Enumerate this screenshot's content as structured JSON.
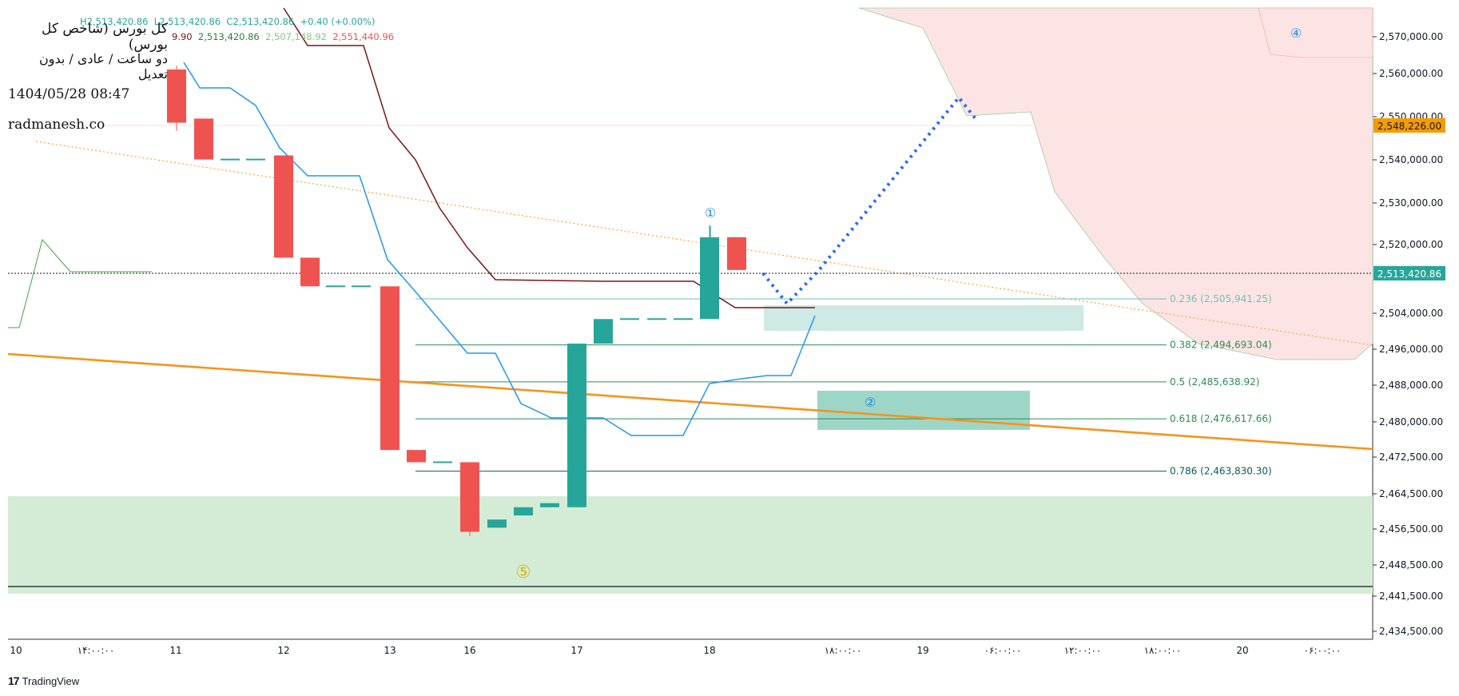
{
  "header": {
    "title": "کل بورس (شاخص کل بورس)",
    "subtitle": "دو ساعت / عادی / بدون تعدیل",
    "datetime": "1404/05/28 08:47",
    "site": "radmanesh.co"
  },
  "ohlc_line": {
    "h": "H2,513,420.86",
    "l": "L2,513,420.86",
    "c": "C2,513,420.86",
    "change": "+0.40 (+0.00%)"
  },
  "indicator_line": {
    "v1": "9.90",
    "v2": "2,513,420.86",
    "v3": "2,507,148.92",
    "v4": "2,551,440.96"
  },
  "brand": "TradingView",
  "colors": {
    "up": "#26a69a",
    "down": "#ef5350",
    "conversion": "#2196f3",
    "base": "#7b1414",
    "lagging": "#43a047",
    "trendline": "#f7931a",
    "projection": "#2962ff",
    "cloud_bearish": "#fde4e4",
    "support_zone": "#d4ecd6"
  },
  "chart_data": {
    "type": "candlestick",
    "y_axis": {
      "ticks": [
        "2,570,000.00",
        "2,560,000.00",
        "2,550,000.00",
        "2,540,000.00",
        "2,530,000.00",
        "2,520,000.00",
        "2,504,000.00",
        "2,496,000.00",
        "2,488,000.00",
        "2,480,000.00",
        "2,472,500.00",
        "2,464,500.00",
        "2,456,500.00",
        "2,448,500.00",
        "2,441,500.00",
        "2,434,500.00"
      ],
      "current_price_label": "2,513,420.86",
      "marker_label": "2,548,226.00"
    },
    "x_axis": {
      "ticks": [
        "10",
        "۱۴:۰۰:۰۰",
        "11",
        "12",
        "13",
        "16",
        "17",
        "18",
        "۱۸:۰۰:۰۰",
        "19",
        "۰۶:۰۰:۰۰",
        "۱۲:۰۰:۰۰",
        "۱۸:۰۰:۰۰",
        "20",
        "۰۶:۰۰:۰۰"
      ]
    },
    "candles": [
      {
        "o": 2562,
        "h": 2563,
        "l": 2547,
        "c": 2549
      },
      {
        "o": 2550,
        "h": 2550,
        "l": 2540,
        "c": 2540
      },
      {
        "o": 2540,
        "h": 2540,
        "l": 2540,
        "c": 2540
      },
      {
        "o": 2540,
        "h": 2540,
        "l": 2540,
        "c": 2540
      },
      {
        "o": 2541,
        "h": 2541,
        "l": 2516,
        "c": 2516
      },
      {
        "o": 2516,
        "h": 2516,
        "l": 2509,
        "c": 2509
      },
      {
        "o": 2509,
        "h": 2509,
        "l": 2509,
        "c": 2509
      },
      {
        "o": 2509,
        "h": 2509,
        "l": 2509,
        "c": 2509
      },
      {
        "o": 2509,
        "h": 2509,
        "l": 2469,
        "c": 2469
      },
      {
        "o": 2469,
        "h": 2469,
        "l": 2466,
        "c": 2466
      },
      {
        "o": 2466,
        "h": 2466,
        "l": 2466,
        "c": 2466
      },
      {
        "o": 2466,
        "h": 2466,
        "l": 2448,
        "c": 2449
      },
      {
        "o": 2450,
        "h": 2452,
        "l": 2450,
        "c": 2452
      },
      {
        "o": 2453,
        "h": 2455,
        "l": 2453,
        "c": 2455
      },
      {
        "o": 2455,
        "h": 2456,
        "l": 2455,
        "c": 2456
      },
      {
        "o": 2455,
        "h": 2495,
        "l": 2455,
        "c": 2495
      },
      {
        "o": 2495,
        "h": 2501,
        "l": 2495,
        "c": 2501
      },
      {
        "o": 2501,
        "h": 2501,
        "l": 2501,
        "c": 2501
      },
      {
        "o": 2501,
        "h": 2501,
        "l": 2501,
        "c": 2501
      },
      {
        "o": 2501,
        "h": 2501,
        "l": 2501,
        "c": 2501
      },
      {
        "o": 2501,
        "h": 2524,
        "l": 2501,
        "c": 2521
      },
      {
        "o": 2521,
        "h": 2521,
        "l": 2513,
        "c": 2513
      }
    ],
    "fib_levels": [
      {
        "label": "0.236 (2,505,941.25)",
        "value": 2505941.25
      },
      {
        "label": "0.382 (2,494,693.04)",
        "value": 2494693.04
      },
      {
        "label": "0.5 (2,485,638.92)",
        "value": 2485638.92
      },
      {
        "label": "0.618 (2,476,617.66)",
        "value": 2476617.66
      },
      {
        "label": "0.786 (2,463,830.30)",
        "value": 2463830.3
      }
    ],
    "wave_labels": [
      "①",
      "②",
      "④",
      "⑤"
    ]
  }
}
